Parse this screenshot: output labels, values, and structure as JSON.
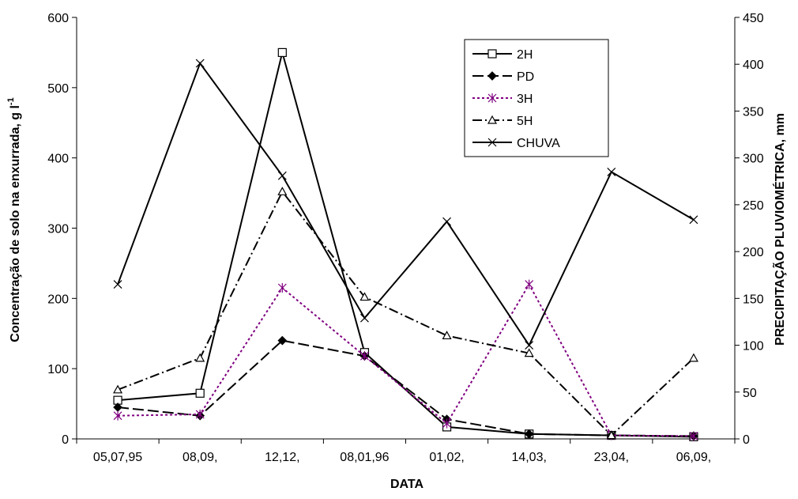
{
  "chart_data": {
    "type": "line",
    "x_label": "DATA",
    "y_label": "Concentração de solo na enxurrada, g l",
    "y_label_superscript": "-1",
    "y2_label": "PRECIPITAÇÃO PLUVIOMÉTRICA, mm",
    "categories": [
      "05,07,95",
      "08,09,",
      "12,12,",
      "08,01,96",
      "01,02,",
      "14,03,",
      "23,04,",
      "06,09,"
    ],
    "ylim": [
      0,
      600
    ],
    "yticks": [
      0,
      100,
      200,
      300,
      400,
      500,
      600
    ],
    "y2lim": [
      0,
      450
    ],
    "y2ticks": [
      0,
      50,
      100,
      150,
      200,
      250,
      300,
      350,
      400,
      450
    ],
    "legend": "upper-right",
    "series": [
      {
        "name": "2H",
        "color": "#000000",
        "dash": "solid",
        "marker": "square",
        "values": [
          55,
          65,
          550,
          123,
          17,
          7,
          5,
          3
        ]
      },
      {
        "name": "PD",
        "color": "#000000",
        "dash": "long-dash",
        "marker": "diamond",
        "values": [
          45,
          33,
          140,
          118,
          28,
          7,
          5,
          4
        ]
      },
      {
        "name": "3H",
        "color": "#800080",
        "dash": "dotted",
        "marker": "asterisk",
        "values": [
          33,
          35,
          215,
          118,
          22,
          220,
          5,
          4
        ]
      },
      {
        "name": "5H",
        "color": "#000000",
        "dash": "dash-dot",
        "marker": "triangle",
        "values": [
          70,
          115,
          352,
          202,
          147,
          122,
          5,
          115
        ]
      },
      {
        "name": "CHUVA",
        "color": "#000000",
        "dash": "solid",
        "marker": "x",
        "axis": "y2",
        "values": [
          165,
          401,
          281,
          129,
          232,
          100,
          285,
          234
        ]
      }
    ]
  }
}
